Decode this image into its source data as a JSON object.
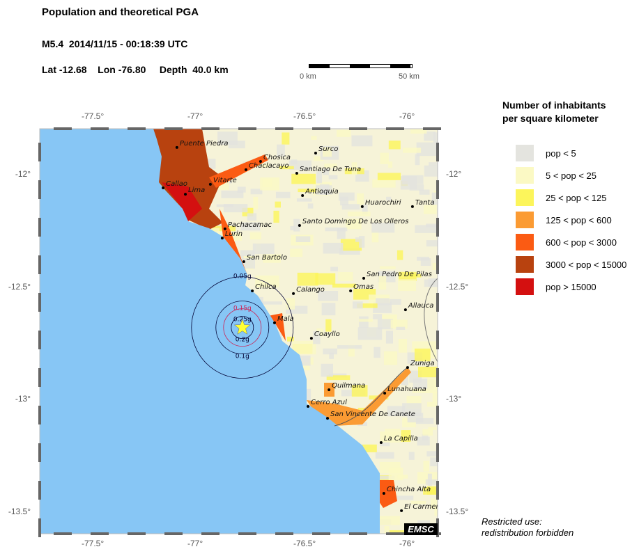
{
  "header": {
    "title": "Population and theoretical PGA",
    "event": "M5.4  2014/11/15 - 00:18:39 UTC",
    "location": "Lat -12.68    Lon -76.80     Depth  40.0 km"
  },
  "scale_bar": {
    "start_label": "0 km",
    "end_label": "50 km"
  },
  "axes": {
    "lon_ticks": [
      {
        "value": -77.5,
        "label": "-77.5°"
      },
      {
        "value": -77,
        "label": "-77°"
      },
      {
        "value": -76.5,
        "label": "-76.5°"
      },
      {
        "value": -76,
        "label": "-76°"
      }
    ],
    "lat_ticks": [
      {
        "value": -12,
        "label": "-12°"
      },
      {
        "value": -12.5,
        "label": "-12.5°"
      },
      {
        "value": -13,
        "label": "-13°"
      },
      {
        "value": -13.5,
        "label": "-13.5°"
      }
    ]
  },
  "epicenter": {
    "lat": -12.68,
    "lon": -76.8,
    "color": "#ffff33"
  },
  "pga_contours": [
    {
      "label": "0.05g",
      "color": "#000033"
    },
    {
      "label": "0.1g",
      "color": "#000033"
    },
    {
      "label": "0.15g",
      "color": "#cc2255"
    },
    {
      "label": "0.25g",
      "color": "#000033"
    },
    {
      "label": "0.2g",
      "color": "#000033"
    }
  ],
  "cities": [
    {
      "name": "Puente Piedra",
      "lon": -77.109,
      "lat": -11.879
    },
    {
      "name": "Chosica",
      "lon": -76.714,
      "lat": -11.941
    },
    {
      "name": "Surco",
      "lon": -76.454,
      "lat": -11.904
    },
    {
      "name": "Chaclacayo",
      "lon": -76.783,
      "lat": -11.978
    },
    {
      "name": "Santiago De Tuna",
      "lon": -76.543,
      "lat": -11.994
    },
    {
      "name": "Callao",
      "lon": -77.174,
      "lat": -12.059
    },
    {
      "name": "Lima",
      "lon": -77.069,
      "lat": -12.087
    },
    {
      "name": "Vitarte",
      "lon": -76.951,
      "lat": -12.043
    },
    {
      "name": "Antioquia",
      "lon": -76.516,
      "lat": -12.093
    },
    {
      "name": "Huarochiri",
      "lon": -76.234,
      "lat": -12.142
    },
    {
      "name": "Tanta",
      "lon": -75.997,
      "lat": -12.142
    },
    {
      "name": "Santo Domingo De Los Olleros",
      "lon": -76.53,
      "lat": -12.226
    },
    {
      "name": "Pachacamac",
      "lon": -76.882,
      "lat": -12.241
    },
    {
      "name": "Lurin",
      "lon": -76.895,
      "lat": -12.282
    },
    {
      "name": "San Bartolo",
      "lon": -76.793,
      "lat": -12.387
    },
    {
      "name": "San Pedro De Pilas",
      "lon": -76.227,
      "lat": -12.461
    },
    {
      "name": "Chilca",
      "lon": -76.753,
      "lat": -12.517
    },
    {
      "name": "Calango",
      "lon": -76.559,
      "lat": -12.529
    },
    {
      "name": "Omas",
      "lon": -76.289,
      "lat": -12.517
    },
    {
      "name": "Allauca",
      "lon": -76.03,
      "lat": -12.601
    },
    {
      "name": "Mala",
      "lon": -76.648,
      "lat": -12.659
    },
    {
      "name": "Coayllo",
      "lon": -76.474,
      "lat": -12.728
    },
    {
      "name": "Zuniga",
      "lon": -76.02,
      "lat": -12.858
    },
    {
      "name": "Quilmana",
      "lon": -76.391,
      "lat": -12.957
    },
    {
      "name": "Lunahuana",
      "lon": -76.128,
      "lat": -12.972
    },
    {
      "name": "Cerro Azul",
      "lon": -76.49,
      "lat": -13.031
    },
    {
      "name": "San Vincente De Canete",
      "lon": -76.398,
      "lat": -13.084
    },
    {
      "name": "La Capilla",
      "lon": -76.145,
      "lat": -13.192
    },
    {
      "name": "Chincha Alta",
      "lon": -76.132,
      "lat": -13.418
    },
    {
      "name": "El Carmen",
      "lon": -76.049,
      "lat": -13.495
    }
  ],
  "colors": {
    "ocean": "#87c6f5",
    "land": "#f6f3d8"
  },
  "legend": {
    "title_line1": "Number of inhabitants",
    "title_line2": "per square kilometer",
    "items": [
      {
        "label": "pop < 5",
        "color": "#e4e4df"
      },
      {
        "label": "5 < pop < 25",
        "color": "#fbf9c4"
      },
      {
        "label": "25 < pop < 125",
        "color": "#fcf55b"
      },
      {
        "label": "125 < pop < 600",
        "color": "#fb9b33"
      },
      {
        "label": "600 < pop < 3000",
        "color": "#fb5b13"
      },
      {
        "label": "3000 < pop < 15000",
        "color": "#b8420f"
      },
      {
        "label": "pop > 15000",
        "color": "#d41010"
      }
    ]
  },
  "logo": "EMSC",
  "note": {
    "line1": "Restricted use:",
    "line2": "redistribution forbidden"
  }
}
